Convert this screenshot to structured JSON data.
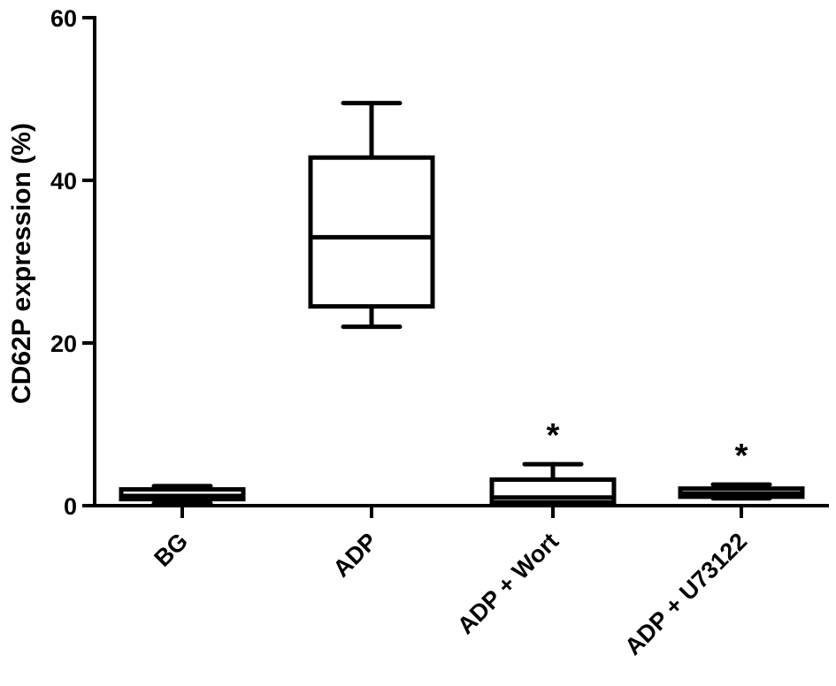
{
  "chart_data": {
    "type": "box",
    "ylabel": "CD62P expression (%)",
    "ylim": [
      0,
      60
    ],
    "yticks": [
      0,
      20,
      40,
      60
    ],
    "grid": false,
    "categories": [
      "BG",
      "ADP",
      "ADP + Wort",
      "ADP + U73122"
    ],
    "boxes": [
      {
        "category": "BG",
        "min": 0.3,
        "q1": 0.8,
        "median": 1.2,
        "q3": 2.0,
        "max": 2.4,
        "annotation": ""
      },
      {
        "category": "ADP",
        "min": 22,
        "q1": 24.5,
        "median": 33,
        "q3": 42.8,
        "max": 49.5,
        "annotation": ""
      },
      {
        "category": "ADP + Wort",
        "min": 0.1,
        "q1": 0.4,
        "median": 1.0,
        "q3": 3.2,
        "max": 5.1,
        "annotation": "*"
      },
      {
        "category": "ADP + U73122",
        "min": 0.9,
        "q1": 1.1,
        "median": 1.5,
        "q3": 2.1,
        "max": 2.6,
        "annotation": "*"
      }
    ]
  }
}
